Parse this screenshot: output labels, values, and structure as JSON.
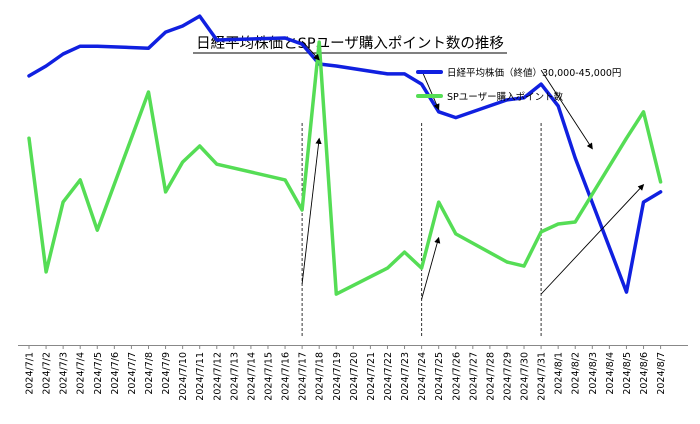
{
  "chart_data": {
    "type": "line",
    "title": "日経平均株価とSPユーザ購入ポイント数の推移",
    "xlabel": "",
    "ylabel": "",
    "grid": false,
    "legend_position": "top-right",
    "categories": [
      "2024/7/1",
      "2024/7/2",
      "2024/7/3",
      "2024/7/4",
      "2024/7/5",
      "2024/7/6",
      "2024/7/7",
      "2024/7/8",
      "2024/7/9",
      "2024/7/10",
      "2024/7/11",
      "2024/7/12",
      "2024/7/13",
      "2024/7/14",
      "2024/7/15",
      "2024/7/16",
      "2024/7/17",
      "2024/7/18",
      "2024/7/19",
      "2024/7/20",
      "2024/7/21",
      "2024/7/22",
      "2024/7/23",
      "2024/7/24",
      "2024/7/25",
      "2024/7/26",
      "2024/7/27",
      "2024/7/28",
      "2024/7/29",
      "2024/7/30",
      "2024/7/31",
      "2024/8/1",
      "2024/8/2",
      "2024/8/3",
      "2024/8/4",
      "2024/8/5",
      "2024/8/6",
      "2024/8/7"
    ],
    "ylim": [
      0,
      100
    ],
    "series": [
      {
        "name": "日経平均株価（終値）30,000-45,000円",
        "color": "#1020e0",
        "points": [
          [
            "2024/7/1",
            77.8
          ],
          [
            "2024/7/2",
            80.7
          ],
          [
            "2024/7/3",
            84.2
          ],
          [
            "2024/7/4",
            86.5
          ],
          [
            "2024/7/5",
            86.5
          ],
          [
            "2024/7/8",
            85.9
          ],
          [
            "2024/7/9",
            90.6
          ],
          [
            "2024/7/10",
            92.4
          ],
          [
            "2024/7/11",
            95.3
          ],
          [
            "2024/7/12",
            88.3
          ],
          [
            "2024/7/16",
            88.9
          ],
          [
            "2024/7/17",
            87.1
          ],
          [
            "2024/7/18",
            81.3
          ],
          [
            "2024/7/19",
            80.7
          ],
          [
            "2024/7/22",
            78.4
          ],
          [
            "2024/7/23",
            78.4
          ],
          [
            "2024/7/24",
            75.4
          ],
          [
            "2024/7/25",
            67.3
          ],
          [
            "2024/7/26",
            65.6
          ],
          [
            "2024/7/29",
            70.8
          ],
          [
            "2024/7/30",
            71.4
          ],
          [
            "2024/7/31",
            75.4
          ],
          [
            "2024/8/1",
            69.0
          ],
          [
            "2024/8/2",
            53.8
          ],
          [
            "2024/8/5",
            14.6
          ],
          [
            "2024/8/6",
            40.9
          ],
          [
            "2024/8/7",
            43.9
          ]
        ]
      },
      {
        "name": "SPユーザー購入ポイント数",
        "color": "#55dd55",
        "points": [
          [
            "2024/7/1",
            59.6
          ],
          [
            "2024/7/2",
            20.5
          ],
          [
            "2024/7/3",
            40.9
          ],
          [
            "2024/7/4",
            47.4
          ],
          [
            "2024/7/5",
            32.7
          ],
          [
            "2024/7/8",
            73.1
          ],
          [
            "2024/7/9",
            43.9
          ],
          [
            "2024/7/10",
            52.6
          ],
          [
            "2024/7/11",
            57.3
          ],
          [
            "2024/7/12",
            52.0
          ],
          [
            "2024/7/16",
            47.4
          ],
          [
            "2024/7/17",
            38.6
          ],
          [
            "2024/7/18",
            87.7
          ],
          [
            "2024/7/19",
            14.0
          ],
          [
            "2024/7/22",
            21.6
          ],
          [
            "2024/7/23",
            26.3
          ],
          [
            "2024/7/24",
            21.6
          ],
          [
            "2024/7/25",
            40.9
          ],
          [
            "2024/7/26",
            31.6
          ],
          [
            "2024/7/29",
            23.4
          ],
          [
            "2024/7/30",
            22.2
          ],
          [
            "2024/7/31",
            32.2
          ],
          [
            "2024/8/1",
            34.5
          ],
          [
            "2024/8/2",
            35.1
          ],
          [
            "2024/8/5",
            59.6
          ],
          [
            "2024/8/6",
            67.3
          ],
          [
            "2024/8/7",
            46.8
          ]
        ]
      }
    ],
    "reference_lines": [
      "2024/7/17",
      "2024/7/24",
      "2024/7/31"
    ],
    "annotation_arrows": [
      {
        "from": [
          "2024/7/17",
          88.0
        ],
        "to": [
          "2024/7/18",
          82.5
        ]
      },
      {
        "from": [
          "2024/7/17",
          17.0
        ],
        "to": [
          "2024/7/18",
          59.5
        ]
      },
      {
        "from": [
          "2024/7/24",
          79.5
        ],
        "to": [
          "2024/7/25",
          68.0
        ]
      },
      {
        "from": [
          "2024/7/24",
          12.5
        ],
        "to": [
          "2024/7/25",
          30.5
        ]
      },
      {
        "from": [
          "2024/7/31",
          79.5
        ],
        "to": [
          "2024/8/3",
          56.5
        ]
      },
      {
        "from": [
          "2024/7/31",
          14.0
        ],
        "to": [
          "2024/8/6",
          46.0
        ]
      }
    ]
  }
}
